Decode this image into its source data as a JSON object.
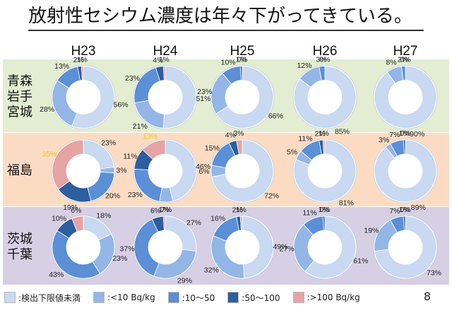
{
  "title": "放射性セシウム濃度は年々下がってきている。",
  "page_number": "8",
  "colors": {
    "band_north": "#e3edd2",
    "band_fukushima": "#fbdcc3",
    "band_ibaraki": "#d7cfe4",
    "ring_bg": "#ffffff"
  },
  "legend": [
    {
      "label": ":検出下限値未満",
      "color": "#c9d9f1"
    },
    {
      "label": ":<10 Bq/kg",
      "color": "#93b6e6"
    },
    {
      "label": ":10～50",
      "color": "#5b8fd6"
    },
    {
      "label": ":50～100",
      "color": "#2d5e9e"
    },
    {
      "label": ":>100 Bq/kg",
      "color": "#e6a3a3"
    }
  ],
  "chart_data": {
    "type": "pie",
    "variant": "donut-grid",
    "title": "放射性セシウム濃度は年々下がってきている。",
    "columns": [
      "H23",
      "H24",
      "H25",
      "H26",
      "H27"
    ],
    "categories": [
      ":検出下限値未満",
      ":<10 Bq/kg",
      ":10～50",
      ":50～100",
      ":>100 Bq/kg"
    ],
    "rows": [
      {
        "name": "青森\n岩手\n宮城",
        "donuts": [
          {
            "values": [
              56,
              28,
              13,
              2,
              1
            ],
            "labels": [
              "56%",
              "28%",
              "13%",
              "2%",
              "1%"
            ]
          },
          {
            "values": [
              51,
              21,
              23,
              4,
              1
            ],
            "labels": [
              "51%",
              "21%",
              "23%",
              "4%",
              "1%"
            ]
          },
          {
            "values": [
              66,
              23,
              10,
              1,
              0
            ],
            "labels": [
              "66%",
              "23%",
              "10%",
              "1%",
              "0%"
            ]
          },
          {
            "values": [
              85,
              12,
              3,
              0,
              0
            ],
            "labels": [
              "85%",
              "12%",
              "3%",
              "",
              "0%"
            ]
          },
          {
            "values": [
              90,
              8,
              2,
              0,
              0
            ],
            "labels": [
              "90%",
              "8%",
              "2%",
              "",
              "0%"
            ]
          }
        ]
      },
      {
        "name": "福島",
        "donuts": [
          {
            "values": [
              23,
              3,
              20,
              19,
              35
            ],
            "labels": [
              "23%",
              "3%",
              "20%",
              "19%",
              "35%"
            ]
          },
          {
            "values": [
              46,
              7,
              23,
              11,
              13
            ],
            "labels": [
              "46%",
              "7%",
              "23%",
              "11%",
              "13%"
            ]
          },
          {
            "values": [
              72,
              6,
              15,
              4,
              3
            ],
            "labels": [
              "72%",
              "6%",
              "15%",
              "4%",
              "3%"
            ]
          },
          {
            "values": [
              81,
              5,
              11,
              2,
              1
            ],
            "labels": [
              "81%",
              "5%",
              "11%",
              "2%",
              "1%"
            ]
          },
          {
            "values": [
              89,
              3,
              7,
              1,
              0
            ],
            "labels": [
              "89%",
              "3%",
              "7%",
              "1%",
              "0%"
            ]
          }
        ]
      },
      {
        "name": "茨城\n千葉",
        "donuts": [
          {
            "values": [
              18,
              23,
              43,
              10,
              6
            ],
            "labels": [
              "18%",
              "23%",
              "43%",
              "10%",
              "6%"
            ]
          },
          {
            "values": [
              27,
              29,
              37,
              6,
              1
            ],
            "labels": [
              "27%",
              "29%",
              "37%",
              "6%",
              "1%"
            ]
          },
          {
            "values": [
              49,
              32,
              16,
              2,
              1
            ],
            "labels": [
              "49%",
              "32%",
              "16%",
              "2%",
              "1%"
            ]
          },
          {
            "values": [
              61,
              27,
              11,
              1,
              0
            ],
            "labels": [
              "61%",
              "27%",
              "11%",
              "1%",
              "0%"
            ]
          },
          {
            "values": [
              73,
              19,
              7,
              1,
              0
            ],
            "labels": [
              "73%",
              "19%",
              "7%",
              "1%",
              "0%"
            ]
          }
        ]
      }
    ]
  }
}
